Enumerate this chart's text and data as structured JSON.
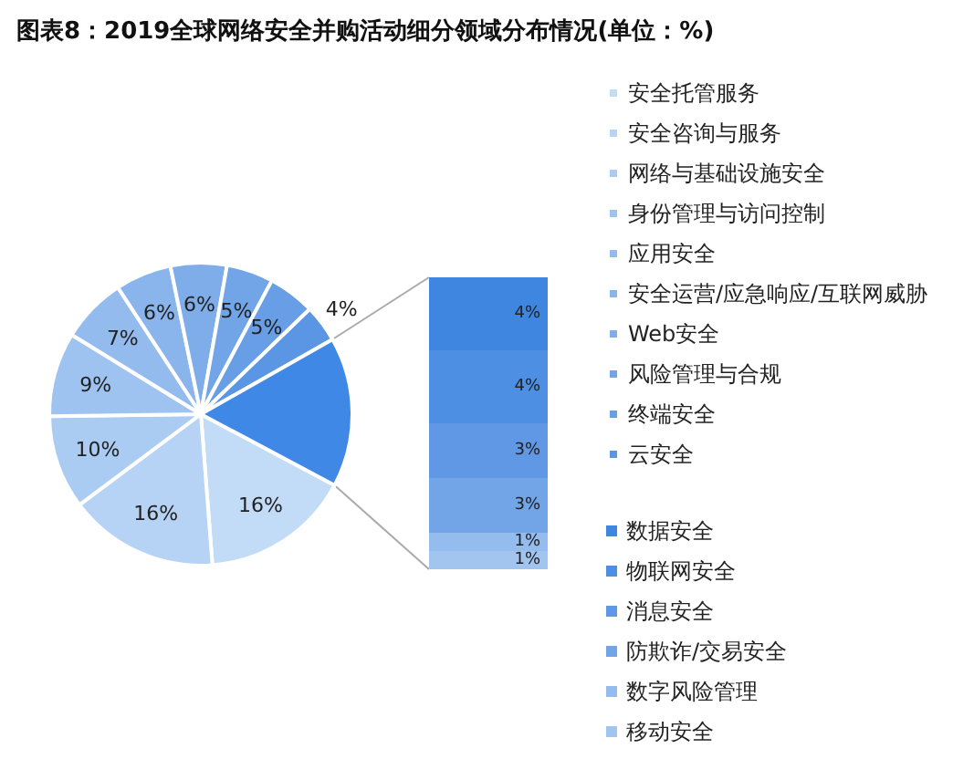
{
  "chart_data": [
    {
      "type": "pie",
      "title": "图表8：2019全球网络安全并购活动细分领域分布情况(单位：%)",
      "categories": [
        "安全托管服务",
        "安全咨询与服务",
        "网络与基础设施安全",
        "身份管理与访问控制",
        "应用安全",
        "安全运营/应急响应/互联网威胁",
        "Web安全",
        "风险管理与合规",
        "终端安全",
        "云安全",
        null
      ],
      "values": [
        16,
        16,
        10,
        9,
        7,
        6,
        6,
        5,
        5,
        4,
        16
      ],
      "colors": [
        "#c2dbf6",
        "#b6d2f4",
        "#aacbf2",
        "#9fc3f0",
        "#94bbee",
        "#89b4ec",
        "#7eadea",
        "#72a5e8",
        "#679ee6",
        "#5a96e4",
        "#3f88e5"
      ],
      "value_labels": [
        "16%",
        "16%",
        "10%",
        "9%",
        "7%",
        "6%",
        "6%",
        "5%",
        "5%",
        "4%",
        null
      ],
      "legend": "right"
    },
    {
      "type": "bar",
      "stacked": true,
      "categories": [
        null
      ],
      "legend": "right",
      "series": [
        {
          "name": "移动安全",
          "color": "#a2c5f0",
          "values": [
            1
          ],
          "value_labels": [
            "1%"
          ]
        },
        {
          "name": "数字风险管理",
          "color": "#94bcee",
          "values": [
            1
          ],
          "value_labels": [
            "1%"
          ]
        },
        {
          "name": "防欺诈/交易安全",
          "color": "#72a5e8",
          "values": [
            3
          ],
          "value_labels": [
            "3%"
          ]
        },
        {
          "name": "消息安全",
          "color": "#6198e6",
          "values": [
            3
          ],
          "value_labels": [
            "3%"
          ]
        },
        {
          "name": "物联网安全",
          "color": "#4c8fe3",
          "values": [
            4
          ],
          "value_labels": [
            "4%"
          ]
        },
        {
          "name": "数据安全",
          "color": "#3e86e0",
          "values": [
            4
          ],
          "value_labels": [
            "4%"
          ]
        }
      ]
    }
  ]
}
